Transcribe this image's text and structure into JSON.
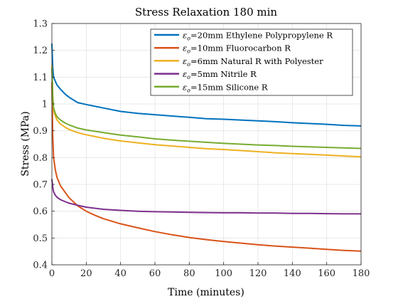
{
  "chart_data": {
    "type": "line",
    "title": "Stress Relaxation 180 min",
    "xlabel": "Time (minutes)",
    "ylabel": "Stress (MPa)",
    "xlim": [
      0,
      180
    ],
    "ylim": [
      0.4,
      1.3
    ],
    "xticks": [
      0,
      20,
      40,
      60,
      80,
      100,
      120,
      140,
      160,
      180
    ],
    "yticks": [
      0.4,
      0.5,
      0.6,
      0.7,
      0.8,
      0.9,
      1,
      1.1,
      1.2,
      1.3
    ],
    "grid": true,
    "legend_position": "top-right",
    "series": [
      {
        "name": "=20mm Ethylene Polypropylene R",
        "color": "#0072BD",
        "x": [
          0,
          0.5,
          1,
          2,
          3,
          5,
          8,
          10,
          15,
          20,
          30,
          40,
          50,
          60,
          70,
          80,
          90,
          100,
          110,
          120,
          130,
          140,
          150,
          160,
          170,
          180
        ],
        "y": [
          1.225,
          1.14,
          1.1,
          1.085,
          1.07,
          1.055,
          1.035,
          1.025,
          1.005,
          0.998,
          0.985,
          0.972,
          0.965,
          0.96,
          0.955,
          0.95,
          0.945,
          0.943,
          0.94,
          0.937,
          0.934,
          0.93,
          0.927,
          0.924,
          0.92,
          0.918
        ]
      },
      {
        "name": "=10mm Fluorocarbon R",
        "color": "#D95319",
        "x": [
          0,
          0.5,
          1,
          2,
          3,
          5,
          8,
          10,
          15,
          20,
          25,
          30,
          40,
          50,
          60,
          70,
          80,
          90,
          100,
          110,
          120,
          130,
          140,
          150,
          160,
          170,
          180
        ],
        "y": [
          1.08,
          0.88,
          0.8,
          0.755,
          0.725,
          0.695,
          0.668,
          0.65,
          0.62,
          0.6,
          0.585,
          0.572,
          0.553,
          0.538,
          0.524,
          0.512,
          0.502,
          0.494,
          0.487,
          0.481,
          0.475,
          0.47,
          0.466,
          0.462,
          0.458,
          0.454,
          0.451
        ]
      },
      {
        "name": "=6mm Natural R with Polyester",
        "color": "#EDB120",
        "x": [
          0,
          0.5,
          1,
          2,
          3,
          5,
          8,
          10,
          15,
          20,
          30,
          40,
          50,
          60,
          70,
          80,
          90,
          100,
          110,
          120,
          130,
          140,
          150,
          160,
          170,
          180
        ],
        "y": [
          1.145,
          1.03,
          0.975,
          0.955,
          0.94,
          0.925,
          0.912,
          0.905,
          0.893,
          0.885,
          0.872,
          0.862,
          0.855,
          0.848,
          0.843,
          0.838,
          0.833,
          0.83,
          0.826,
          0.822,
          0.818,
          0.815,
          0.812,
          0.809,
          0.806,
          0.803
        ]
      },
      {
        "name": "=5mm Nitrile R",
        "color": "#7E2F8E",
        "x": [
          0,
          0.5,
          1,
          2,
          3,
          5,
          8,
          10,
          15,
          20,
          30,
          40,
          50,
          60,
          70,
          80,
          90,
          100,
          110,
          120,
          130,
          140,
          150,
          160,
          170,
          180
        ],
        "y": [
          0.72,
          0.69,
          0.672,
          0.66,
          0.652,
          0.643,
          0.635,
          0.63,
          0.622,
          0.615,
          0.607,
          0.603,
          0.6,
          0.598,
          0.597,
          0.596,
          0.595,
          0.594,
          0.594,
          0.593,
          0.593,
          0.592,
          0.592,
          0.591,
          0.59,
          0.59
        ]
      },
      {
        "name": "=15mm Silicone R",
        "color": "#77AC30",
        "x": [
          0,
          0.5,
          1,
          2,
          3,
          5,
          8,
          10,
          15,
          20,
          30,
          40,
          50,
          60,
          70,
          80,
          90,
          100,
          110,
          120,
          130,
          140,
          150,
          160,
          170,
          180
        ],
        "y": [
          1.135,
          1.03,
          0.985,
          0.965,
          0.952,
          0.94,
          0.928,
          0.922,
          0.91,
          0.903,
          0.893,
          0.884,
          0.877,
          0.87,
          0.865,
          0.861,
          0.857,
          0.853,
          0.85,
          0.847,
          0.845,
          0.842,
          0.84,
          0.838,
          0.836,
          0.834
        ]
      }
    ]
  },
  "legend_symbol": "ε",
  "legend_subscript": "o"
}
